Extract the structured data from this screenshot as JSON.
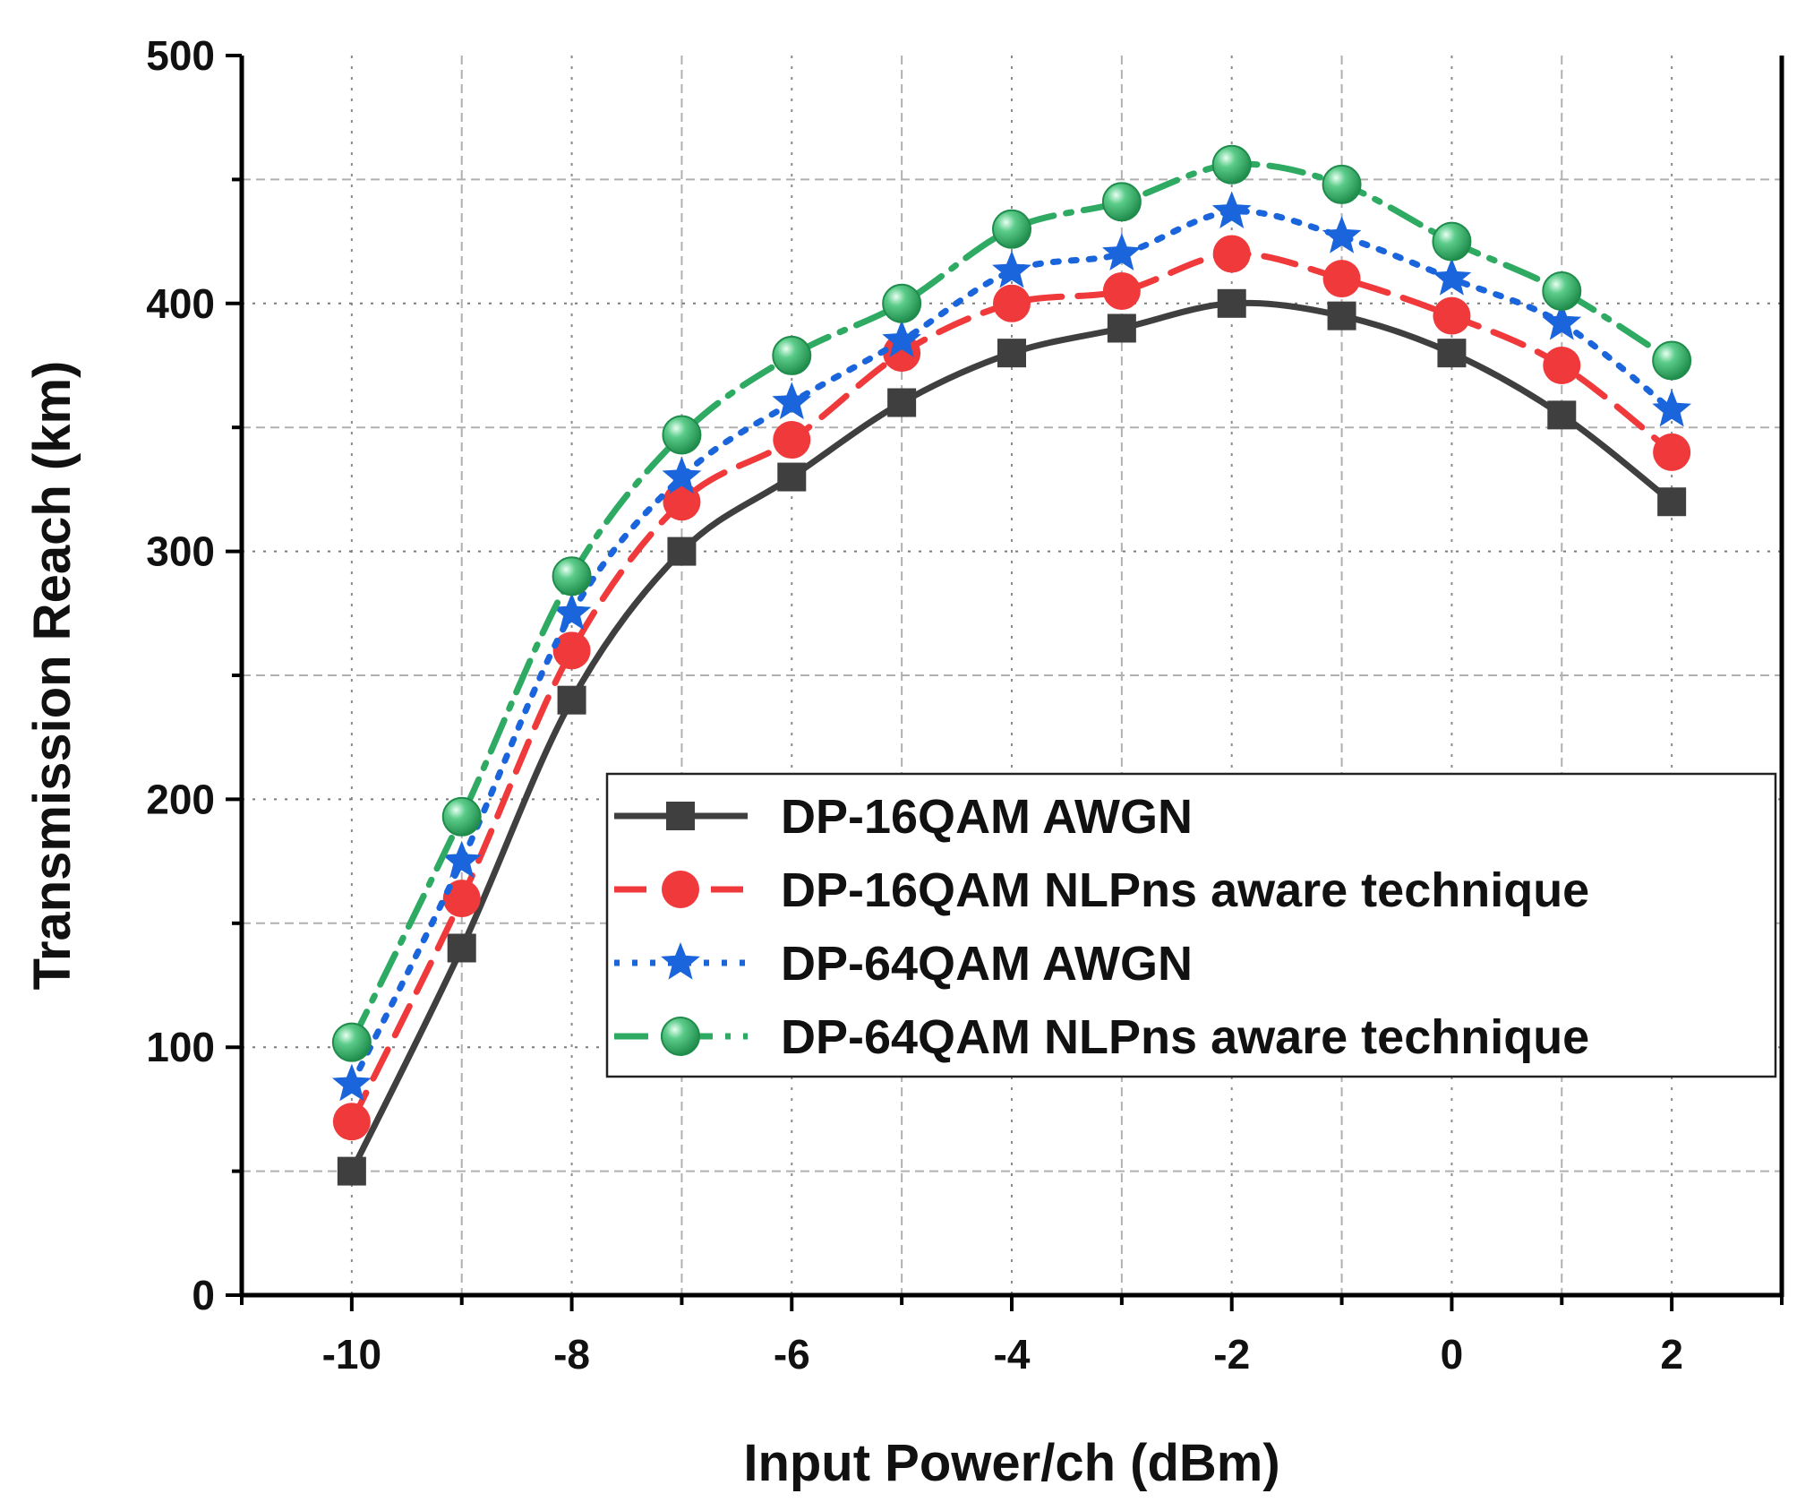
{
  "chart_data": {
    "type": "line",
    "title": "",
    "xlabel": "Input Power/ch (dBm)",
    "ylabel": "Transmission Reach (km)",
    "xlim": [
      -11,
      3
    ],
    "ylim": [
      0,
      500
    ],
    "x": [
      -10,
      -9,
      -8,
      -7,
      -6,
      -5,
      -4,
      -3,
      -2,
      -1,
      0,
      1,
      2
    ],
    "xticks": [
      -10,
      -8,
      -6,
      -4,
      -2,
      0,
      2
    ],
    "yticks": [
      0,
      100,
      200,
      300,
      400,
      500
    ],
    "grid": true,
    "legend_position": "center-right",
    "series": [
      {
        "name": "DP-16QAM AWGN",
        "color": "#3f3f3f",
        "style": "solid",
        "marker": "square",
        "values": [
          50,
          140,
          240,
          300,
          330,
          360,
          380,
          390,
          400,
          395,
          380,
          355,
          320
        ]
      },
      {
        "name": "DP-16QAM NLPns aware technique",
        "color": "#f0393b",
        "style": "dashed",
        "marker": "circle",
        "values": [
          70,
          160,
          260,
          320,
          345,
          380,
          400,
          405,
          420,
          410,
          395,
          375,
          340
        ]
      },
      {
        "name": "DP-64QAM AWGN",
        "color": "#1a64dc",
        "style": "dotted",
        "marker": "star",
        "values": [
          85,
          175,
          275,
          330,
          360,
          385,
          413,
          420,
          437,
          427,
          410,
          392,
          357
        ]
      },
      {
        "name": "DP-64QAM NLPns aware technique",
        "color": "#2eaa63",
        "style": "dashdot",
        "marker": "sphere",
        "values": [
          102,
          193,
          290,
          347,
          379,
          400,
          430,
          441,
          456,
          448,
          425,
          405,
          377
        ]
      }
    ]
  }
}
